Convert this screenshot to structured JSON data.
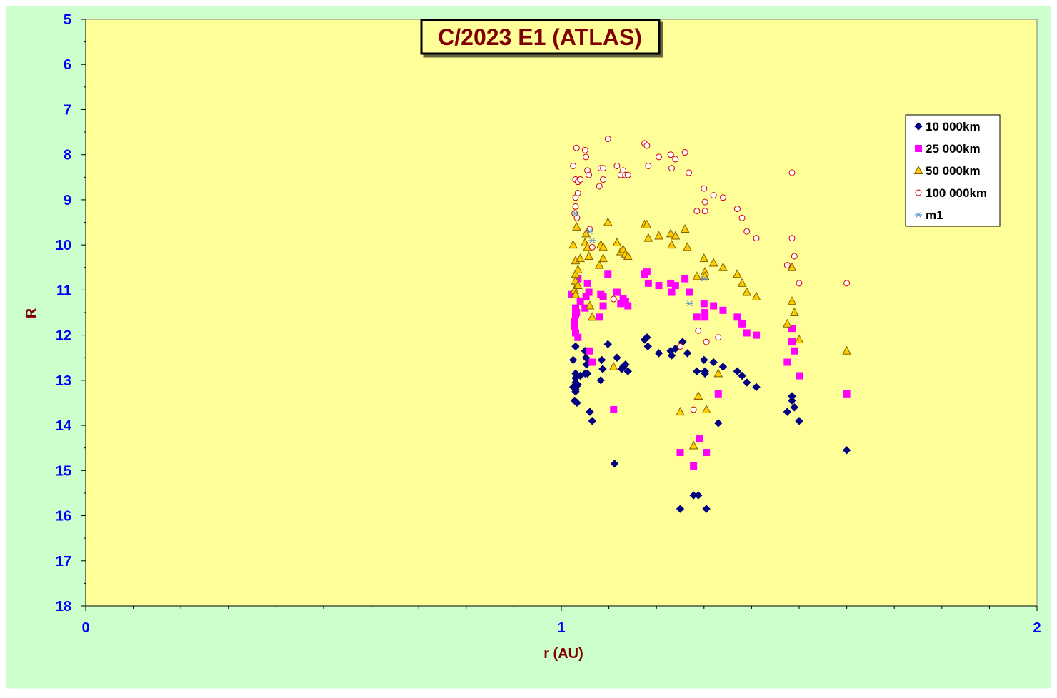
{
  "colors": {
    "chart_area": "#ccffcc",
    "plot_area": "#ffff99",
    "axis_text": "#0000ff",
    "axis_title": "#800000",
    "title_text": "#800000",
    "series_10k": "#000080",
    "series_25k": "#ff00ff",
    "series_50k_fill": "#ffcc00",
    "series_50k_stroke": "#806000",
    "series_100k": "#cc0000",
    "series_m1": "#6699cc"
  },
  "chart_data": {
    "type": "scatter",
    "title": "C/2023 E1 (ATLAS)",
    "xlabel": "r (AU)",
    "ylabel": "R",
    "xlim": [
      0,
      2
    ],
    "ylim": [
      5,
      18
    ],
    "y_reversed": true,
    "x_ticks": [
      "0",
      "1",
      "2"
    ],
    "y_ticks": [
      "5",
      "6",
      "7",
      "8",
      "9",
      "10",
      "11",
      "12",
      "13",
      "14",
      "15",
      "16",
      "17",
      "18"
    ],
    "grid": false,
    "legend_position": "top-right",
    "series": [
      {
        "name": "10 000km",
        "marker": "diamond",
        "points": [
          [
            1.025,
            12.55
          ],
          [
            1.03,
            12.25
          ],
          [
            1.03,
            12.85
          ],
          [
            1.03,
            12.95
          ],
          [
            1.03,
            13.05
          ],
          [
            1.025,
            13.15
          ],
          [
            1.03,
            13.2
          ],
          [
            1.03,
            13.25
          ],
          [
            1.028,
            13.45
          ],
          [
            1.033,
            13.5
          ],
          [
            1.035,
            13.1
          ],
          [
            1.04,
            12.9
          ],
          [
            1.05,
            12.35
          ],
          [
            1.052,
            12.5
          ],
          [
            1.053,
            12.65
          ],
          [
            1.05,
            12.85
          ],
          [
            1.055,
            12.85
          ],
          [
            1.058,
            12.6
          ],
          [
            1.06,
            13.7
          ],
          [
            1.065,
            13.9
          ],
          [
            1.083,
            13.0
          ],
          [
            1.085,
            12.55
          ],
          [
            1.087,
            12.75
          ],
          [
            1.098,
            12.2
          ],
          [
            1.112,
            14.85
          ],
          [
            1.117,
            12.5
          ],
          [
            1.127,
            12.75
          ],
          [
            1.13,
            12.7
          ],
          [
            1.135,
            12.65
          ],
          [
            1.14,
            12.8
          ],
          [
            1.175,
            12.1
          ],
          [
            1.18,
            12.05
          ],
          [
            1.182,
            12.25
          ],
          [
            1.205,
            12.4
          ],
          [
            1.23,
            12.35
          ],
          [
            1.232,
            12.45
          ],
          [
            1.24,
            12.3
          ],
          [
            1.25,
            15.85
          ],
          [
            1.255,
            12.15
          ],
          [
            1.265,
            12.4
          ],
          [
            1.278,
            15.55
          ],
          [
            1.285,
            12.8
          ],
          [
            1.288,
            15.55
          ],
          [
            1.3,
            12.55
          ],
          [
            1.302,
            12.8
          ],
          [
            1.302,
            12.85
          ],
          [
            1.305,
            15.85
          ],
          [
            1.32,
            12.6
          ],
          [
            1.33,
            13.95
          ],
          [
            1.34,
            12.7
          ],
          [
            1.37,
            12.8
          ],
          [
            1.38,
            12.9
          ],
          [
            1.39,
            13.05
          ],
          [
            1.41,
            13.15
          ],
          [
            1.475,
            13.7
          ],
          [
            1.485,
            13.35
          ],
          [
            1.485,
            13.45
          ],
          [
            1.49,
            13.6
          ],
          [
            1.5,
            13.9
          ],
          [
            1.6,
            14.55
          ]
        ]
      },
      {
        "name": "25 000km",
        "marker": "square",
        "points": [
          [
            1.022,
            11.1
          ],
          [
            1.03,
            11.4
          ],
          [
            1.03,
            11.55
          ],
          [
            1.028,
            11.7
          ],
          [
            1.028,
            11.8
          ],
          [
            1.03,
            11.95
          ],
          [
            1.035,
            12.05
          ],
          [
            1.032,
            11.5
          ],
          [
            1.035,
            10.75
          ],
          [
            1.04,
            11.25
          ],
          [
            1.05,
            11.4
          ],
          [
            1.052,
            11.15
          ],
          [
            1.055,
            10.85
          ],
          [
            1.058,
            11.05
          ],
          [
            1.06,
            12.35
          ],
          [
            1.065,
            12.6
          ],
          [
            1.08,
            11.6
          ],
          [
            1.083,
            11.1
          ],
          [
            1.088,
            11.35
          ],
          [
            1.088,
            11.15
          ],
          [
            1.098,
            10.65
          ],
          [
            1.11,
            13.65
          ],
          [
            1.117,
            11.05
          ],
          [
            1.125,
            11.3
          ],
          [
            1.13,
            11.2
          ],
          [
            1.135,
            11.25
          ],
          [
            1.14,
            11.35
          ],
          [
            1.175,
            10.65
          ],
          [
            1.18,
            10.6
          ],
          [
            1.183,
            10.85
          ],
          [
            1.205,
            10.9
          ],
          [
            1.23,
            10.85
          ],
          [
            1.232,
            11.05
          ],
          [
            1.24,
            10.9
          ],
          [
            1.25,
            14.6
          ],
          [
            1.26,
            10.75
          ],
          [
            1.27,
            11.05
          ],
          [
            1.278,
            14.9
          ],
          [
            1.285,
            11.6
          ],
          [
            1.29,
            14.3
          ],
          [
            1.3,
            11.3
          ],
          [
            1.302,
            11.5
          ],
          [
            1.302,
            11.6
          ],
          [
            1.305,
            14.6
          ],
          [
            1.32,
            11.35
          ],
          [
            1.33,
            13.3
          ],
          [
            1.34,
            11.45
          ],
          [
            1.37,
            11.6
          ],
          [
            1.38,
            11.75
          ],
          [
            1.39,
            11.95
          ],
          [
            1.41,
            12.0
          ],
          [
            1.475,
            12.6
          ],
          [
            1.485,
            11.85
          ],
          [
            1.485,
            12.15
          ],
          [
            1.49,
            12.35
          ],
          [
            1.5,
            12.9
          ],
          [
            1.6,
            13.3
          ]
        ]
      },
      {
        "name": "50 000km",
        "marker": "triangle",
        "points": [
          [
            1.025,
            10.0
          ],
          [
            1.03,
            10.35
          ],
          [
            1.03,
            10.65
          ],
          [
            1.03,
            10.8
          ],
          [
            1.028,
            11.0
          ],
          [
            1.03,
            11.1
          ],
          [
            1.035,
            10.9
          ],
          [
            1.032,
            9.6
          ],
          [
            1.035,
            10.55
          ],
          [
            1.04,
            10.3
          ],
          [
            1.05,
            9.95
          ],
          [
            1.052,
            9.75
          ],
          [
            1.055,
            10.05
          ],
          [
            1.058,
            10.25
          ],
          [
            1.06,
            11.35
          ],
          [
            1.065,
            11.6
          ],
          [
            1.08,
            10.45
          ],
          [
            1.083,
            10.0
          ],
          [
            1.088,
            10.3
          ],
          [
            1.088,
            10.05
          ],
          [
            1.098,
            9.5
          ],
          [
            1.11,
            12.7
          ],
          [
            1.117,
            9.95
          ],
          [
            1.125,
            10.15
          ],
          [
            1.13,
            10.1
          ],
          [
            1.135,
            10.2
          ],
          [
            1.14,
            10.25
          ],
          [
            1.175,
            9.55
          ],
          [
            1.18,
            9.55
          ],
          [
            1.183,
            9.85
          ],
          [
            1.205,
            9.8
          ],
          [
            1.23,
            9.75
          ],
          [
            1.232,
            10.0
          ],
          [
            1.24,
            9.8
          ],
          [
            1.25,
            13.7
          ],
          [
            1.26,
            9.65
          ],
          [
            1.265,
            10.05
          ],
          [
            1.278,
            14.45
          ],
          [
            1.285,
            10.7
          ],
          [
            1.288,
            13.35
          ],
          [
            1.3,
            10.3
          ],
          [
            1.302,
            10.6
          ],
          [
            1.302,
            10.7
          ],
          [
            1.305,
            13.65
          ],
          [
            1.32,
            10.4
          ],
          [
            1.33,
            12.85
          ],
          [
            1.34,
            10.5
          ],
          [
            1.37,
            10.65
          ],
          [
            1.38,
            10.85
          ],
          [
            1.39,
            11.05
          ],
          [
            1.41,
            11.15
          ],
          [
            1.475,
            11.75
          ],
          [
            1.485,
            10.5
          ],
          [
            1.485,
            11.25
          ],
          [
            1.49,
            11.5
          ],
          [
            1.5,
            12.1
          ],
          [
            1.6,
            12.35
          ]
        ]
      },
      {
        "name": "100 000km",
        "marker": "circle",
        "points": [
          [
            1.025,
            8.25
          ],
          [
            1.03,
            8.55
          ],
          [
            1.03,
            8.95
          ],
          [
            1.03,
            9.15
          ],
          [
            1.028,
            9.3
          ],
          [
            1.033,
            9.4
          ],
          [
            1.035,
            8.85
          ],
          [
            1.032,
            7.85
          ],
          [
            1.035,
            8.6
          ],
          [
            1.04,
            8.55
          ],
          [
            1.05,
            7.9
          ],
          [
            1.052,
            8.05
          ],
          [
            1.055,
            8.35
          ],
          [
            1.058,
            8.45
          ],
          [
            1.06,
            9.65
          ],
          [
            1.065,
            10.05
          ],
          [
            1.08,
            8.7
          ],
          [
            1.083,
            8.3
          ],
          [
            1.088,
            8.3
          ],
          [
            1.088,
            8.55
          ],
          [
            1.098,
            7.65
          ],
          [
            1.11,
            11.2
          ],
          [
            1.117,
            8.25
          ],
          [
            1.125,
            8.45
          ],
          [
            1.13,
            8.35
          ],
          [
            1.135,
            8.45
          ],
          [
            1.14,
            8.45
          ],
          [
            1.175,
            7.75
          ],
          [
            1.18,
            7.8
          ],
          [
            1.183,
            8.25
          ],
          [
            1.205,
            8.05
          ],
          [
            1.23,
            8.0
          ],
          [
            1.232,
            8.3
          ],
          [
            1.24,
            8.1
          ],
          [
            1.25,
            12.25
          ],
          [
            1.26,
            7.95
          ],
          [
            1.268,
            8.4
          ],
          [
            1.278,
            13.65
          ],
          [
            1.285,
            9.25
          ],
          [
            1.288,
            11.9
          ],
          [
            1.3,
            8.75
          ],
          [
            1.302,
            9.05
          ],
          [
            1.302,
            9.25
          ],
          [
            1.305,
            12.15
          ],
          [
            1.32,
            8.9
          ],
          [
            1.33,
            12.05
          ],
          [
            1.34,
            8.95
          ],
          [
            1.37,
            9.2
          ],
          [
            1.38,
            9.4
          ],
          [
            1.39,
            9.7
          ],
          [
            1.41,
            9.85
          ],
          [
            1.475,
            10.45
          ],
          [
            1.485,
            8.4
          ],
          [
            1.485,
            9.85
          ],
          [
            1.49,
            10.25
          ],
          [
            1.5,
            10.85
          ],
          [
            1.6,
            10.85
          ]
        ]
      },
      {
        "name": "m1",
        "marker": "star",
        "points": [
          [
            1.03,
            9.3
          ],
          [
            1.06,
            9.7
          ],
          [
            1.065,
            9.9
          ],
          [
            1.27,
            11.3
          ],
          [
            1.3,
            10.75
          ]
        ]
      }
    ]
  }
}
